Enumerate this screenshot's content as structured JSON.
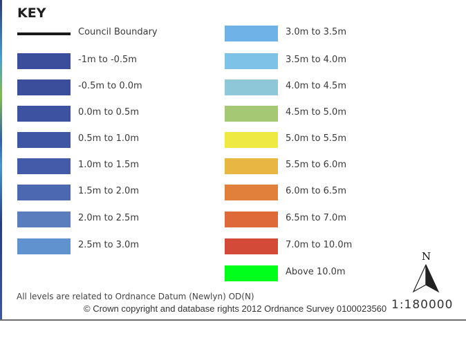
{
  "key": {
    "title": "KEY",
    "boundary_label": "Council Boundary",
    "left_column": [
      {
        "label": "-1m to -0.5m",
        "color": "#3b4e9c"
      },
      {
        "label": "-0.5m to 0.0m",
        "color": "#3b4e9c"
      },
      {
        "label": "0.0m to 0.5m",
        "color": "#3d52a0"
      },
      {
        "label": "0.5m to 1.0m",
        "color": "#3f56a4"
      },
      {
        "label": "1.0m to 1.5m",
        "color": "#435ba8"
      },
      {
        "label": "1.5m to 2.0m",
        "color": "#4b68b0"
      },
      {
        "label": "2.0m to 2.5m",
        "color": "#5a7dbd"
      },
      {
        "label": "2.5m to 3.0m",
        "color": "#6092d0"
      }
    ],
    "right_column": [
      {
        "label": "3.0m to 3.5m",
        "color": "#6eb2e8"
      },
      {
        "label": "3.5m to 4.0m",
        "color": "#7ec2e8"
      },
      {
        "label": "4.0m to 4.5m",
        "color": "#8ec8d8"
      },
      {
        "label": "4.5m to 5.0m",
        "color": "#a4c874"
      },
      {
        "label": "5.0m to 5.5m",
        "color": "#efe944"
      },
      {
        "label": "5.5m to 6.0m",
        "color": "#e8b642"
      },
      {
        "label": "6.0m to 6.5m",
        "color": "#e0803a"
      },
      {
        "label": "6.5m to 7.0m",
        "color": "#de6a3a"
      },
      {
        "label": "7.0m to 10.0m",
        "color": "#d44a38"
      },
      {
        "label": "Above 10.0m",
        "color": "#00ff1a"
      }
    ]
  },
  "note": "All levels are related to Ordnance Datum (Newlyn) OD(N)",
  "north_letter": "N",
  "scale": "1:180000",
  "copyright": "© Crown copyright and database rights 2012 Ordnance Survey 0100023560",
  "icons": [
    "north-arrow-icon"
  ]
}
